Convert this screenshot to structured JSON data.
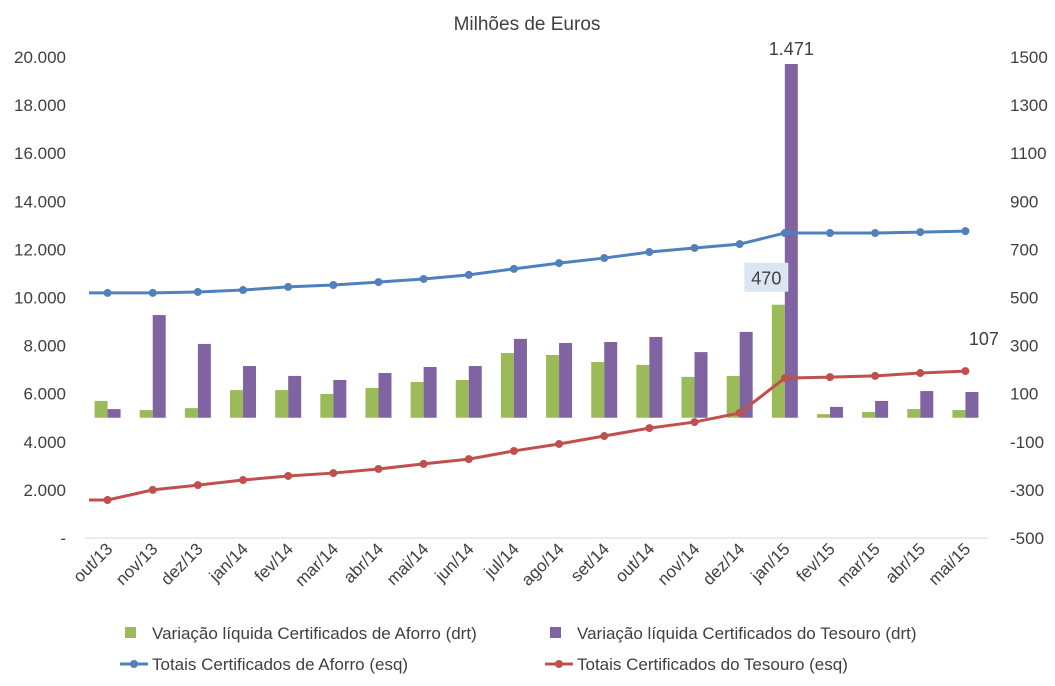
{
  "chart_data": {
    "type": "bar+line",
    "title": "Milhões de Euros",
    "categories": [
      "out/13",
      "nov/13",
      "dez/13",
      "jan/14",
      "fev/14",
      "mar/14",
      "abr/14",
      "mai/14",
      "jun/14",
      "jul/14",
      "ago/14",
      "set/14",
      "out/14",
      "nov/14",
      "dez/14",
      "jan/15",
      "fev/15",
      "mar/15",
      "abr/15",
      "mai/15"
    ],
    "left_axis": {
      "ylim": [
        0,
        20000
      ],
      "ticks": [
        "-",
        "2.000",
        "4.000",
        "6.000",
        "8.000",
        "10.000",
        "12.000",
        "14.000",
        "16.000",
        "18.000",
        "20.000"
      ],
      "tick_values": [
        0,
        2000,
        4000,
        6000,
        8000,
        10000,
        12000,
        14000,
        16000,
        18000,
        20000
      ]
    },
    "right_axis": {
      "ylim": [
        -500,
        1500
      ],
      "ticks": [
        "-500",
        "-300",
        "-100",
        "100",
        "300",
        "500",
        "700",
        "900",
        "1100",
        "1300",
        "1500"
      ],
      "tick_values": [
        -500,
        -300,
        -100,
        100,
        300,
        500,
        700,
        900,
        1100,
        1300,
        1500
      ]
    },
    "grid": false,
    "legend_position": "bottom",
    "series": [
      {
        "name": "Variação líquida Certificados de Aforro (drt)",
        "type": "bar",
        "axis": "right",
        "color": "#9bbb59",
        "values": [
          70,
          32,
          40,
          115,
          115,
          99,
          124,
          149,
          157,
          269,
          261,
          232,
          220,
          170,
          174,
          470,
          15,
          24,
          36,
          32
        ]
      },
      {
        "name": "Variação líquida Certificados do Tesouro (drt)",
        "type": "bar",
        "axis": "right",
        "color": "#8064a2",
        "values": [
          36,
          427,
          307,
          215,
          174,
          157,
          186,
          211,
          215,
          328,
          311,
          315,
          336,
          273,
          357,
          1471,
          45,
          70,
          111,
          107
        ]
      },
      {
        "name": "Totais Certificados de Aforro (esq)",
        "type": "line",
        "axis": "left",
        "color": "#4f81bd",
        "values": [
          10190,
          10190,
          10230,
          10310,
          10440,
          10520,
          10640,
          10770,
          10940,
          11190,
          11430,
          11640,
          11890,
          12060,
          12220,
          12680,
          12680,
          12680,
          12720,
          12760
        ]
      },
      {
        "name": "Totais Certificados do Tesouro (esq)",
        "type": "line",
        "axis": "left",
        "color": "#c0504d",
        "values": [
          1580,
          2000,
          2200,
          2410,
          2580,
          2700,
          2870,
          3080,
          3280,
          3620,
          3910,
          4240,
          4570,
          4820,
          5200,
          6650,
          6690,
          6740,
          6860,
          6940
        ]
      }
    ],
    "data_labels": [
      {
        "series": 0,
        "index": 15,
        "text": "470"
      },
      {
        "series": 1,
        "index": 15,
        "text": "1.471"
      },
      {
        "series": 1,
        "index": 19,
        "text": "107"
      }
    ]
  }
}
